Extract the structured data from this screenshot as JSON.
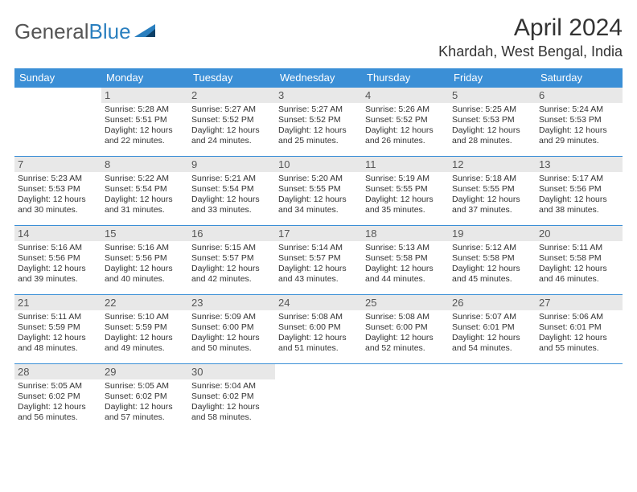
{
  "brand": {
    "part1": "General",
    "part2": "Blue"
  },
  "title": "April 2024",
  "location": "Khardah, West Bengal, India",
  "colors": {
    "header_bg": "#3b8fd6",
    "header_text": "#ffffff",
    "daynum_bg": "#e8e8e8",
    "rule": "#3b8fd6",
    "text": "#333333",
    "brand_gray": "#555555",
    "brand_blue": "#2a7fbf",
    "background": "#ffffff"
  },
  "weekdays": [
    "Sunday",
    "Monday",
    "Tuesday",
    "Wednesday",
    "Thursday",
    "Friday",
    "Saturday"
  ],
  "weeks": [
    [
      null,
      {
        "n": "1",
        "sunrise": "5:28 AM",
        "sunset": "5:51 PM",
        "daylight": "12 hours and 22 minutes."
      },
      {
        "n": "2",
        "sunrise": "5:27 AM",
        "sunset": "5:52 PM",
        "daylight": "12 hours and 24 minutes."
      },
      {
        "n": "3",
        "sunrise": "5:27 AM",
        "sunset": "5:52 PM",
        "daylight": "12 hours and 25 minutes."
      },
      {
        "n": "4",
        "sunrise": "5:26 AM",
        "sunset": "5:52 PM",
        "daylight": "12 hours and 26 minutes."
      },
      {
        "n": "5",
        "sunrise": "5:25 AM",
        "sunset": "5:53 PM",
        "daylight": "12 hours and 28 minutes."
      },
      {
        "n": "6",
        "sunrise": "5:24 AM",
        "sunset": "5:53 PM",
        "daylight": "12 hours and 29 minutes."
      }
    ],
    [
      {
        "n": "7",
        "sunrise": "5:23 AM",
        "sunset": "5:53 PM",
        "daylight": "12 hours and 30 minutes."
      },
      {
        "n": "8",
        "sunrise": "5:22 AM",
        "sunset": "5:54 PM",
        "daylight": "12 hours and 31 minutes."
      },
      {
        "n": "9",
        "sunrise": "5:21 AM",
        "sunset": "5:54 PM",
        "daylight": "12 hours and 33 minutes."
      },
      {
        "n": "10",
        "sunrise": "5:20 AM",
        "sunset": "5:55 PM",
        "daylight": "12 hours and 34 minutes."
      },
      {
        "n": "11",
        "sunrise": "5:19 AM",
        "sunset": "5:55 PM",
        "daylight": "12 hours and 35 minutes."
      },
      {
        "n": "12",
        "sunrise": "5:18 AM",
        "sunset": "5:55 PM",
        "daylight": "12 hours and 37 minutes."
      },
      {
        "n": "13",
        "sunrise": "5:17 AM",
        "sunset": "5:56 PM",
        "daylight": "12 hours and 38 minutes."
      }
    ],
    [
      {
        "n": "14",
        "sunrise": "5:16 AM",
        "sunset": "5:56 PM",
        "daylight": "12 hours and 39 minutes."
      },
      {
        "n": "15",
        "sunrise": "5:16 AM",
        "sunset": "5:56 PM",
        "daylight": "12 hours and 40 minutes."
      },
      {
        "n": "16",
        "sunrise": "5:15 AM",
        "sunset": "5:57 PM",
        "daylight": "12 hours and 42 minutes."
      },
      {
        "n": "17",
        "sunrise": "5:14 AM",
        "sunset": "5:57 PM",
        "daylight": "12 hours and 43 minutes."
      },
      {
        "n": "18",
        "sunrise": "5:13 AM",
        "sunset": "5:58 PM",
        "daylight": "12 hours and 44 minutes."
      },
      {
        "n": "19",
        "sunrise": "5:12 AM",
        "sunset": "5:58 PM",
        "daylight": "12 hours and 45 minutes."
      },
      {
        "n": "20",
        "sunrise": "5:11 AM",
        "sunset": "5:58 PM",
        "daylight": "12 hours and 46 minutes."
      }
    ],
    [
      {
        "n": "21",
        "sunrise": "5:11 AM",
        "sunset": "5:59 PM",
        "daylight": "12 hours and 48 minutes."
      },
      {
        "n": "22",
        "sunrise": "5:10 AM",
        "sunset": "5:59 PM",
        "daylight": "12 hours and 49 minutes."
      },
      {
        "n": "23",
        "sunrise": "5:09 AM",
        "sunset": "6:00 PM",
        "daylight": "12 hours and 50 minutes."
      },
      {
        "n": "24",
        "sunrise": "5:08 AM",
        "sunset": "6:00 PM",
        "daylight": "12 hours and 51 minutes."
      },
      {
        "n": "25",
        "sunrise": "5:08 AM",
        "sunset": "6:00 PM",
        "daylight": "12 hours and 52 minutes."
      },
      {
        "n": "26",
        "sunrise": "5:07 AM",
        "sunset": "6:01 PM",
        "daylight": "12 hours and 54 minutes."
      },
      {
        "n": "27",
        "sunrise": "5:06 AM",
        "sunset": "6:01 PM",
        "daylight": "12 hours and 55 minutes."
      }
    ],
    [
      {
        "n": "28",
        "sunrise": "5:05 AM",
        "sunset": "6:02 PM",
        "daylight": "12 hours and 56 minutes."
      },
      {
        "n": "29",
        "sunrise": "5:05 AM",
        "sunset": "6:02 PM",
        "daylight": "12 hours and 57 minutes."
      },
      {
        "n": "30",
        "sunrise": "5:04 AM",
        "sunset": "6:02 PM",
        "daylight": "12 hours and 58 minutes."
      },
      null,
      null,
      null,
      null
    ]
  ],
  "labels": {
    "sunrise": "Sunrise:",
    "sunset": "Sunset:",
    "daylight": "Daylight:"
  }
}
